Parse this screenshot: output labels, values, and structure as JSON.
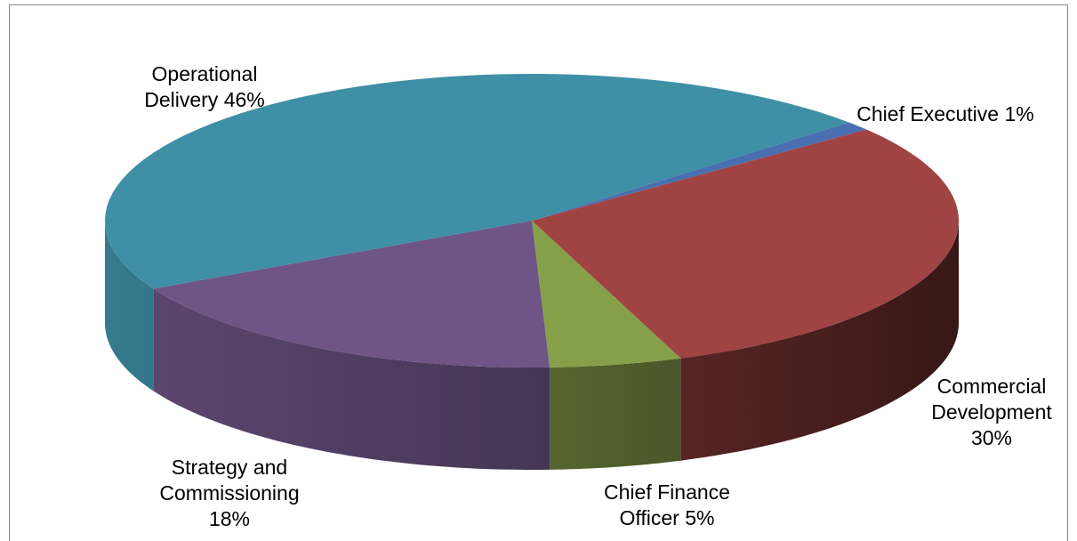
{
  "chart_data": {
    "type": "pie3d",
    "categories": [
      "Chief Executive",
      "Commercial Development",
      "Chief Finance Officer",
      "Strategy and Commissioning",
      "Operational Delivery"
    ],
    "values": [
      1,
      30,
      5,
      18,
      46
    ],
    "value_labels": [
      "1%",
      "30%",
      "5%",
      "18%",
      "46%"
    ],
    "colors": [
      "#4a6fb0",
      "#a04343",
      "#86a04a",
      "#6e5586",
      "#3f8fa6"
    ]
  }
}
